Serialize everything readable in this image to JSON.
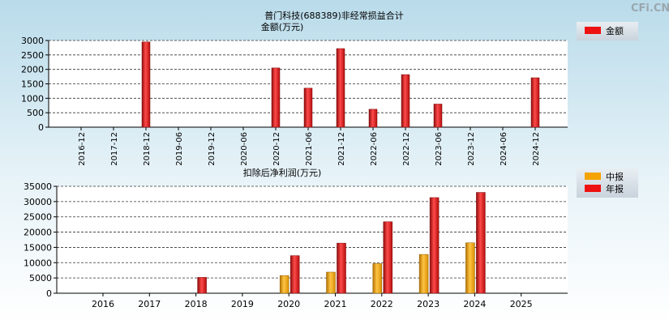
{
  "watermark": "CFi.CN",
  "chart_data": [
    {
      "type": "bar",
      "title": "普门科技(688389)非经常损益合计",
      "subtitle": "金额(万元)",
      "categories": [
        "2016-12",
        "2017-12",
        "2018-12",
        "2019-06",
        "2019-12",
        "2020-06",
        "2020-12",
        "2021-06",
        "2021-12",
        "2022-06",
        "2022-12",
        "2023-06",
        "2023-12",
        "2024-06",
        "2024-12"
      ],
      "series": [
        {
          "name": "金额",
          "color": "#ee1111",
          "values": [
            0,
            0,
            2950,
            0,
            0,
            0,
            2050,
            1350,
            2720,
            620,
            1820,
            800,
            0,
            0,
            1710
          ]
        }
      ],
      "ylim": [
        0,
        3000
      ],
      "yticks": [
        0,
        500,
        1000,
        1500,
        2000,
        2500,
        3000
      ],
      "legend": [
        "金额"
      ]
    },
    {
      "type": "bar",
      "title": "扣除后净利润(万元)",
      "categories": [
        "2016",
        "2017",
        "2018",
        "2019",
        "2020",
        "2021",
        "2022",
        "2023",
        "2024",
        "2025"
      ],
      "series": [
        {
          "name": "中报",
          "color": "#f5a300",
          "values": [
            0,
            0,
            0,
            0,
            5800,
            6900,
            9700,
            12700,
            16500,
            0
          ]
        },
        {
          "name": "年报",
          "color": "#ee1111",
          "values": [
            0,
            0,
            5200,
            0,
            12300,
            16400,
            23400,
            31300,
            33000,
            0
          ]
        }
      ],
      "ylim": [
        0,
        35000
      ],
      "yticks": [
        0,
        5000,
        10000,
        15000,
        20000,
        25000,
        30000,
        35000
      ],
      "legend": [
        "中报",
        "年报"
      ]
    }
  ]
}
